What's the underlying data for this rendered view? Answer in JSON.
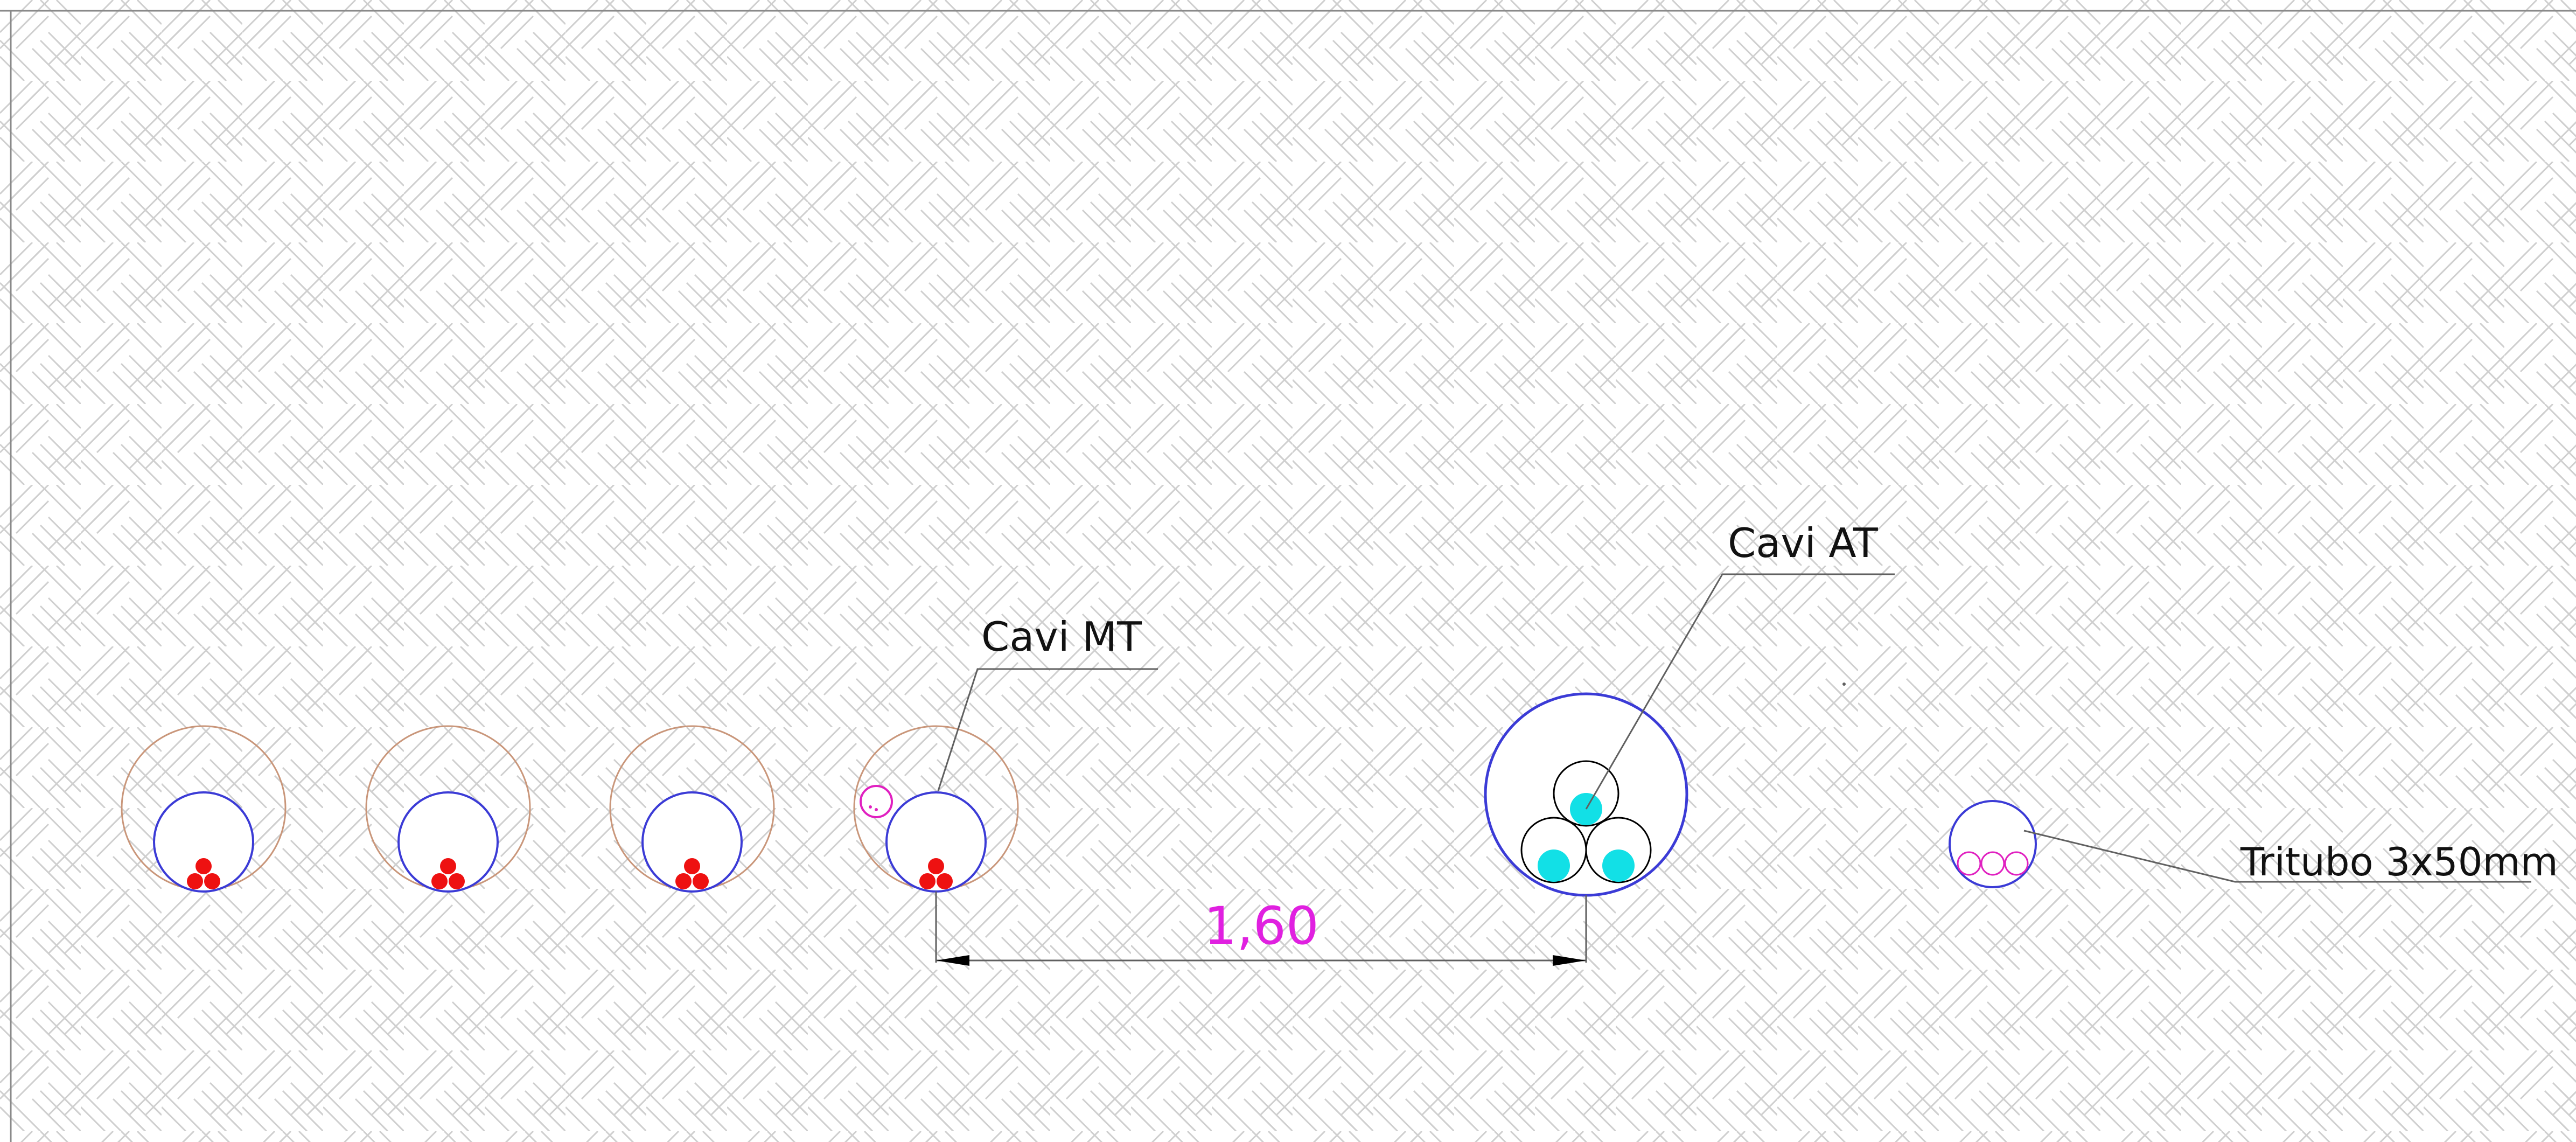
{
  "labels": {
    "mt_cables": "Cavi MT",
    "at_cables": "Cavi AT",
    "tritubo": "Tritubo 3x50mm"
  },
  "dimension": {
    "value": "1,60"
  },
  "colors": {
    "background": "#ffffff",
    "hatch": "#cfcfcf",
    "border": "#8a8a8a",
    "outer_trench_circle": "#c9967a",
    "conduit": "#3b3bd6",
    "mt_cable": "#ee1111",
    "at_cable": "#12e0e6",
    "at_cable_outline": "#000000",
    "small_pipe": "#e020c0",
    "dimension_text": "#e020e0",
    "leader": "#606060",
    "text": "#111111"
  }
}
